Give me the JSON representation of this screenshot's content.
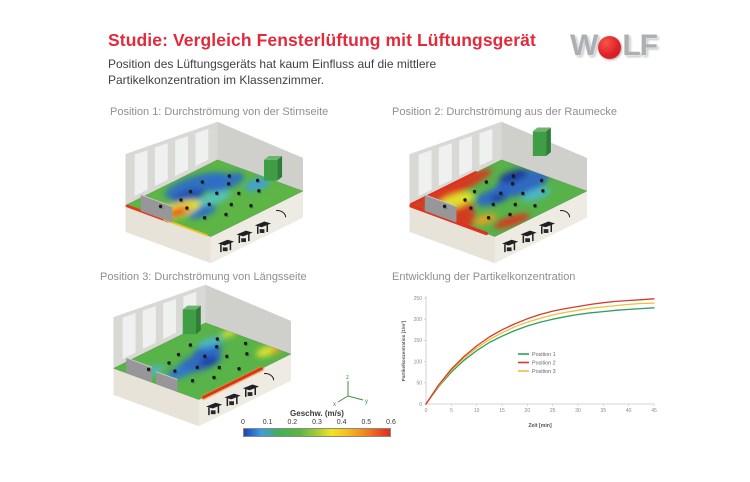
{
  "header": {
    "title": "Studie: Vergleich Fensterlüftung mit Lüftungsgerät",
    "subtitle": "Position des Lüftungsgeräts hat kaum Einfluss auf die mittlere Partikelkonzentration im Klassenzimmer.",
    "title_color": "#e22a3b"
  },
  "logo": {
    "brand": "WOLF",
    "letters_left": "W",
    "letters_right": "LF",
    "circle_color": "#e02127",
    "letter_color": "#adb0b3"
  },
  "panels": [
    {
      "label": "Position 1: Durchströmung von der Stirnseite"
    },
    {
      "label": "Position 2: Durchströmung aus der Raumecke"
    },
    {
      "label": "Position 3: Durchströmung von Längsseite"
    },
    {
      "label": "Entwicklung der Partikelkonzentration"
    }
  ],
  "colorbar": {
    "title": "Geschw. (m/s)",
    "ticks": [
      "0",
      "0.1",
      "0.2",
      "0.3",
      "0.4",
      "0.5",
      "0.6"
    ]
  },
  "axis_triad": {
    "z": "z",
    "x": "x",
    "y": "y"
  },
  "chart_data": {
    "type": "line",
    "title": "Entwicklung der Partikelkonzentration",
    "xlabel": "Zeit [min]",
    "ylabel": "Partikelkonzentration [1/m³]",
    "xlim": [
      0,
      45
    ],
    "ylim": [
      0,
      250
    ],
    "xticks": [
      0,
      5,
      10,
      15,
      20,
      25,
      30,
      35,
      40,
      45
    ],
    "yticks": [
      0,
      50,
      100,
      150,
      200,
      250
    ],
    "grid": false,
    "legend_position": "center-right",
    "x": [
      0,
      2.5,
      5,
      7.5,
      10,
      12.5,
      15,
      17.5,
      20,
      22.5,
      25,
      27.5,
      30,
      32.5,
      35,
      37.5,
      40,
      42.5,
      45
    ],
    "series": [
      {
        "name": "Position 1",
        "color": "#2d9f5c",
        "values": [
          0,
          41,
          75,
          103,
          126,
          145,
          160,
          173,
          184,
          193,
          200,
          206,
          211,
          215,
          218,
          221,
          223,
          225,
          227
        ]
      },
      {
        "name": "Position 2",
        "color": "#d63a2f",
        "values": [
          0,
          45,
          82,
          112,
          137,
          158,
          175,
          189,
          201,
          211,
          219,
          225,
          230,
          235,
          239,
          242,
          244,
          246,
          248
        ]
      },
      {
        "name": "Position 3",
        "color": "#efbf3a",
        "values": [
          0,
          43,
          79,
          108,
          132,
          152,
          168,
          182,
          193,
          202,
          210,
          216,
          221,
          226,
          229,
          232,
          235,
          237,
          238
        ]
      }
    ]
  }
}
